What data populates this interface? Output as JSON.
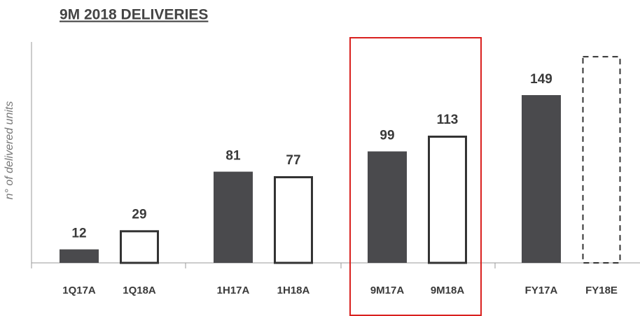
{
  "chart_data": {
    "type": "bar",
    "title": "9M 2018 DELIVERIES",
    "y_axis_label": "n° of delivered units",
    "categories": [
      "1Q17A",
      "1Q18A",
      "1H17A",
      "1H18A",
      "9M17A",
      "9M18A",
      "FY17A",
      "FY18E"
    ],
    "values": [
      12,
      29,
      81,
      77,
      99,
      113,
      149,
      184
    ],
    "value_labels": [
      "12",
      "29",
      "81",
      "77",
      "99",
      "113",
      "149",
      null
    ],
    "bar_styles": [
      "filled",
      "outline",
      "filled",
      "outline",
      "filled",
      "outline",
      "filled",
      "dashed"
    ],
    "color": "#4a4a4d",
    "ylim": [
      0,
      190
    ]
  }
}
